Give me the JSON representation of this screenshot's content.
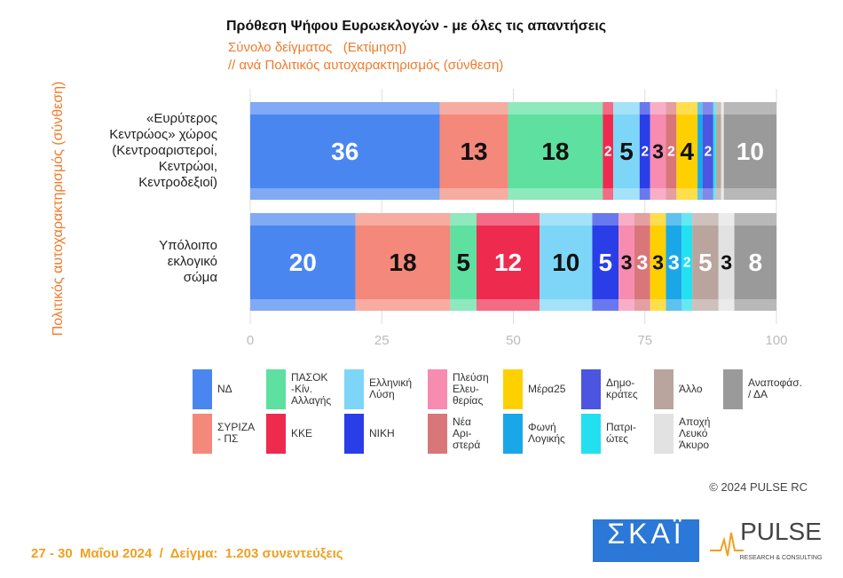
{
  "chart_data": {
    "type": "stacked-bar-horizontal",
    "title": "Πρόθεση Ψήφου Ευρωεκλογών - με όλες τις απαντήσεις",
    "subtitle": [
      "Σύνολο δείγματος   (Εκτίμηση)",
      "// ανά Πολιτικός αυτοχαρακτηρισμός (σύνθεση)"
    ],
    "ylabel": "Πολιτικός αυτοχαρακτηρισμός (σύνθεση)",
    "watermark": "PULSE",
    "categories": [
      "«Ευρύτερος\nΚεντρώος» χώρος\n(Κεντροαριστεροί,\nΚεντρώοι,\nΚεντροδεξιοί)",
      "Υπόλοιπο\nεκλογικό\nσώμα"
    ],
    "xlim": [
      0,
      100
    ],
    "xticks": [
      0,
      25,
      50,
      75,
      100
    ],
    "grid": true,
    "series": [
      {
        "name": "ΝΔ",
        "color": "#4a86f0",
        "label_color": "#ffffff",
        "values": [
          36,
          20
        ]
      },
      {
        "name": "ΣΥΡΙΖΑ\n- ΠΣ",
        "color": "#f4887a",
        "label_color": "#111111",
        "values": [
          13,
          18
        ]
      },
      {
        "name": "ΠΑΣΟΚ\n-Κίν.\nΑλλαγής",
        "color": "#5ee0a0",
        "label_color": "#111111",
        "values": [
          18,
          5
        ]
      },
      {
        "name": "ΚΚΕ",
        "color": "#ee2b4f",
        "label_color": "#ffffff",
        "values": [
          2,
          12
        ]
      },
      {
        "name": "Ελληνική\nΛύση",
        "color": "#7dd6f7",
        "label_color": "#111111",
        "values": [
          5,
          10
        ]
      },
      {
        "name": "ΝΙΚΗ",
        "color": "#2a3ee8",
        "label_color": "#ffffff",
        "values": [
          2,
          5
        ]
      },
      {
        "name": "Πλεύση\nΕλευ-\nθερίας",
        "color": "#f78bb0",
        "label_color": "#111111",
        "values": [
          3,
          3
        ]
      },
      {
        "name": "Νέα\nΑρι-\nστερά",
        "color": "#d9767a",
        "label_color": "#ffffff",
        "values": [
          2,
          3
        ]
      },
      {
        "name": "Μέρα25",
        "color": "#ffd000",
        "label_color": "#111111",
        "values": [
          4,
          3
        ]
      },
      {
        "name": "Φωνή\nΛογικής",
        "color": "#1aa7e8",
        "label_color": "#ffffff",
        "values": [
          1,
          3
        ]
      },
      {
        "name": "Δημο-\nκράτες",
        "color": "#4b55e0",
        "label_color": "#ffffff",
        "values": [
          2,
          0
        ]
      },
      {
        "name": "Πατρι-\nώτες",
        "color": "#22e0f0",
        "label_color": "#ffffff",
        "values": [
          0.5,
          2
        ]
      },
      {
        "name": "Άλλο",
        "color": "#b9a59d",
        "label_color": "#ffffff",
        "values": [
          1,
          5
        ]
      },
      {
        "name": "Αποχή\nΛευκό\nΆκυρο",
        "color": "#e2e2e2",
        "label_color": "#111111",
        "values": [
          0.5,
          3
        ]
      },
      {
        "name": "Αναποφάσ.\n/ ΔΑ",
        "color": "#9a9a9a",
        "label_color": "#ffffff",
        "values": [
          10,
          8
        ]
      }
    ]
  },
  "footer": {
    "note": "27 - 30  Μαΐου 2024  /  Δείγμα:  1.203 συνεντεύξεις",
    "copyright": "© 2024 PULSE RC",
    "logo_skai": "ΣΚΑΪ",
    "logo_pulse": "PULSE",
    "logo_pulse_sub": "RESEARCH & CONSULTING"
  }
}
